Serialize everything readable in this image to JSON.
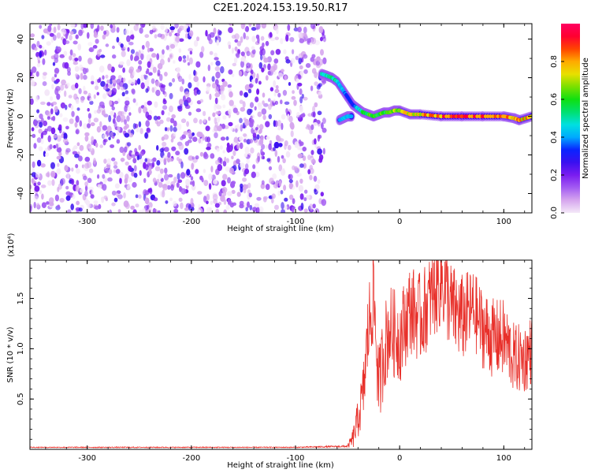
{
  "title": "C2E1.2024.153.19.50.R17",
  "colormap": [
    "#f4e8f8",
    "#d6a6ee",
    "#a35cf2",
    "#7a1cf0",
    "#3a10f0",
    "#0a24ff",
    "#00aaff",
    "#00e0e0",
    "#00e070",
    "#10e010",
    "#7ae000",
    "#e8e000",
    "#ffaa00",
    "#ff4400",
    "#ff0030",
    "#ff0060"
  ],
  "chart_data": [
    {
      "type": "heatmap",
      "title": "C2E1.2024.153.19.50.R17",
      "xlabel": "Height of straight line (km)",
      "ylabel": "Frequency (Hz)",
      "xlim": [
        -355,
        127
      ],
      "ylim": [
        -50,
        48
      ],
      "x_ticks": [
        -300,
        -200,
        -100,
        0,
        100
      ],
      "y_ticks": [
        -40,
        -20,
        0,
        20,
        40
      ],
      "colorbar": {
        "label": "Normalized spectral amplitude",
        "ticks": [
          "0.0",
          "0.2",
          "0.4",
          "0.6",
          "0.8"
        ],
        "tick_values": [
          0.0,
          0.2,
          0.4,
          0.6,
          0.8
        ],
        "range": [
          0,
          1
        ]
      },
      "noise_region": {
        "x_range": [
          -355,
          -72
        ],
        "freq_range": [
          -50,
          48
        ],
        "amplitude_range": [
          0.02,
          0.25
        ]
      },
      "ridge": {
        "x": [
          -75,
          -70,
          -65,
          -60,
          -55,
          -50,
          -45,
          -40,
          -35,
          -30,
          -25,
          -20,
          -15,
          -10,
          -5,
          0,
          10,
          20,
          40,
          60,
          80,
          100,
          110,
          115,
          127
        ],
        "freq": [
          22,
          21,
          20,
          18,
          14,
          10,
          6,
          4,
          2,
          1,
          0,
          1,
          2,
          2,
          3,
          3,
          1,
          1,
          0,
          0,
          0,
          0,
          -1,
          -2,
          0
        ],
        "amplitude": [
          0.5,
          0.5,
          0.55,
          0.5,
          0.4,
          0.35,
          0.35,
          0.45,
          0.55,
          0.6,
          0.65,
          0.6,
          0.6,
          0.65,
          0.7,
          0.7,
          0.75,
          0.8,
          0.85,
          0.88,
          0.9,
          0.9,
          0.8,
          0.8,
          0.8
        ]
      },
      "lower_branch": {
        "x": [
          -58,
          -54,
          -50,
          -46
        ],
        "freq": [
          -2,
          -1,
          0,
          0
        ],
        "amplitude": [
          0.4,
          0.45,
          0.45,
          0.4
        ]
      }
    },
    {
      "type": "line",
      "xlabel": "Height of straight line (km)",
      "ylabel": "SNR (10 * v/v)",
      "y_scale_note": "(x10⁴)",
      "xlim": [
        -355,
        127
      ],
      "ylim": [
        0,
        1.88
      ],
      "x_ticks": [
        -300,
        -200,
        -100,
        0,
        100
      ],
      "y_ticks": [
        0.5,
        1.0,
        1.5
      ],
      "series": [
        {
          "color": "#e8302a",
          "x": [
            -355,
            -300,
            -200,
            -100,
            -50,
            -45,
            -40,
            -35,
            -30,
            -25,
            -20,
            -15,
            -10,
            0,
            10,
            20,
            30,
            40,
            50,
            60,
            70,
            80,
            90,
            100,
            110,
            120,
            127
          ],
          "y": [
            0.02,
            0.02,
            0.02,
            0.02,
            0.03,
            0.1,
            0.3,
            0.55,
            1.2,
            1.55,
            0.6,
            1.0,
            1.2,
            1.1,
            1.4,
            1.3,
            1.5,
            1.7,
            1.4,
            1.3,
            1.4,
            1.2,
            1.1,
            1.1,
            0.9,
            0.9,
            1.0
          ],
          "spread": [
            0.005,
            0.005,
            0.005,
            0.005,
            0.01,
            0.1,
            0.2,
            0.3,
            0.45,
            0.5,
            0.4,
            0.45,
            0.45,
            0.45,
            0.45,
            0.45,
            0.45,
            0.5,
            0.45,
            0.45,
            0.4,
            0.4,
            0.4,
            0.4,
            0.35,
            0.35,
            0.35
          ]
        }
      ]
    }
  ]
}
